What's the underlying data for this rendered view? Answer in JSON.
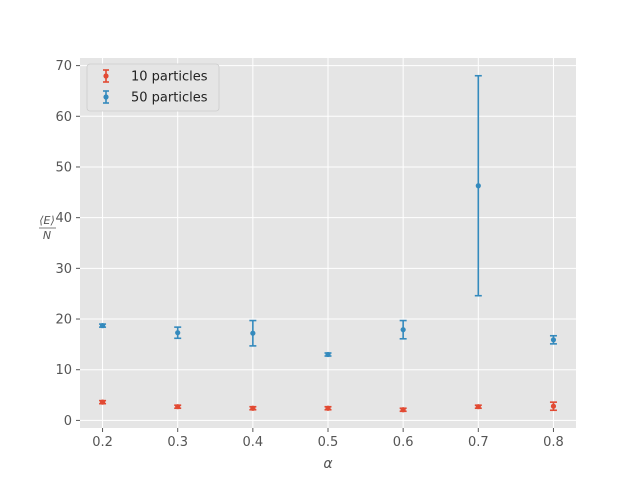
{
  "chart_data": {
    "type": "scatter",
    "title": "",
    "xlabel": "α",
    "ylabel_numerator": "⟨E⟩",
    "ylabel_denominator": "N",
    "xlim": [
      0.17,
      0.83
    ],
    "ylim": [
      -1.5,
      71.5
    ],
    "grid": true,
    "legend_position": "top-left",
    "x_ticks": [
      0.2,
      0.3,
      0.4,
      0.5,
      0.6,
      0.7,
      0.8
    ],
    "x_tick_labels": [
      "0.2",
      "0.3",
      "0.4",
      "0.5",
      "0.6",
      "0.7",
      "0.8"
    ],
    "y_ticks": [
      0,
      10,
      20,
      30,
      40,
      50,
      60,
      70
    ],
    "y_tick_labels": [
      "0",
      "10",
      "20",
      "30",
      "40",
      "50",
      "60",
      "70"
    ],
    "series": [
      {
        "name": "10 particles",
        "color": "#e24a33",
        "x": [
          0.2,
          0.3,
          0.4,
          0.5,
          0.6,
          0.7,
          0.8
        ],
        "y": [
          3.6,
          2.7,
          2.4,
          2.4,
          2.1,
          2.7,
          2.8
        ],
        "yerr": [
          0.3,
          0.3,
          0.3,
          0.3,
          0.3,
          0.3,
          0.8
        ]
      },
      {
        "name": "50 particles",
        "color": "#348abd",
        "x": [
          0.2,
          0.3,
          0.4,
          0.5,
          0.6,
          0.7,
          0.8
        ],
        "y": [
          18.7,
          17.3,
          17.2,
          13.0,
          17.9,
          46.3,
          15.9
        ],
        "yerr": [
          0.3,
          1.1,
          2.5,
          0.3,
          1.8,
          21.7,
          0.8
        ]
      }
    ]
  },
  "colors": {
    "plot_background": "#e5e5e5",
    "grid": "#ffffff",
    "text": "#555555"
  }
}
